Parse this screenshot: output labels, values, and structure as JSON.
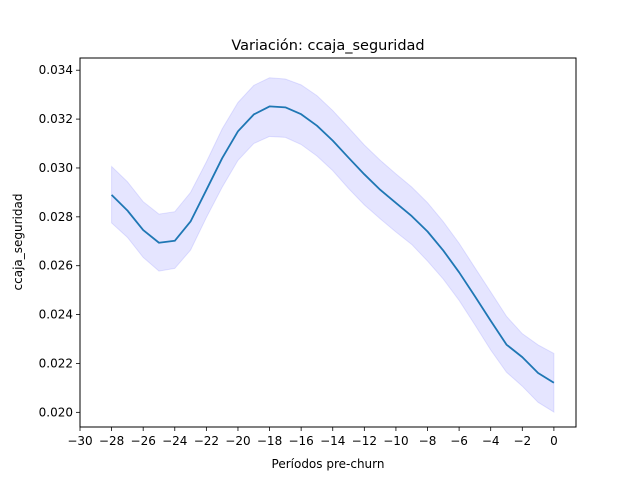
{
  "chart_data": {
    "type": "line",
    "title": "Variación: ccaja_seguridad",
    "xlabel": "Períodos pre-churn",
    "ylabel": "ccaja_seguridad",
    "xlim": [
      -30,
      1.4
    ],
    "ylim": [
      0.0194,
      0.0345
    ],
    "xticks": [
      -30,
      -28,
      -26,
      -24,
      -22,
      -20,
      -18,
      -16,
      -14,
      -12,
      -10,
      -8,
      -6,
      -4,
      -2,
      0
    ],
    "yticks": [
      0.02,
      0.022,
      0.024,
      0.026,
      0.028,
      0.03,
      0.032,
      0.034
    ],
    "grid": false,
    "series": [
      {
        "name": "",
        "color": "#1f77b4",
        "band_color": "#0000ff",
        "x": [
          -28,
          -27,
          -26,
          -25,
          -24,
          -23,
          -22,
          -21,
          -20,
          -19,
          -18,
          -17,
          -16,
          -15,
          -14,
          -13,
          -12,
          -11,
          -10,
          -9,
          -8,
          -7,
          -6,
          -5,
          -4,
          -3,
          -2,
          -1,
          0
        ],
        "values": [
          0.0289,
          0.02826,
          0.02746,
          0.02694,
          0.02702,
          0.02781,
          0.0291,
          0.0304,
          0.0315,
          0.03219,
          0.03252,
          0.03248,
          0.0322,
          0.03173,
          0.03112,
          0.03042,
          0.02974,
          0.02911,
          0.02857,
          0.02803,
          0.0274,
          0.02662,
          0.02573,
          0.02475,
          0.02375,
          0.02277,
          0.02226,
          0.02161,
          0.02121
        ],
        "lower": [
          0.02775,
          0.02716,
          0.02634,
          0.02578,
          0.02589,
          0.02664,
          0.02797,
          0.02921,
          0.03031,
          0.031,
          0.03129,
          0.03125,
          0.03096,
          0.03049,
          0.02989,
          0.02916,
          0.02849,
          0.02792,
          0.02738,
          0.02687,
          0.02619,
          0.02545,
          0.02458,
          0.02358,
          0.02255,
          0.02164,
          0.02107,
          0.02041,
          0.02001
        ],
        "upper": [
          0.03006,
          0.02944,
          0.02862,
          0.02811,
          0.02821,
          0.029,
          0.03025,
          0.0316,
          0.03268,
          0.03338,
          0.03369,
          0.03364,
          0.0334,
          0.03296,
          0.03235,
          0.03165,
          0.03094,
          0.03032,
          0.02976,
          0.02922,
          0.02858,
          0.0278,
          0.02692,
          0.02592,
          0.02493,
          0.02393,
          0.02322,
          0.02276,
          0.02241
        ]
      }
    ]
  }
}
